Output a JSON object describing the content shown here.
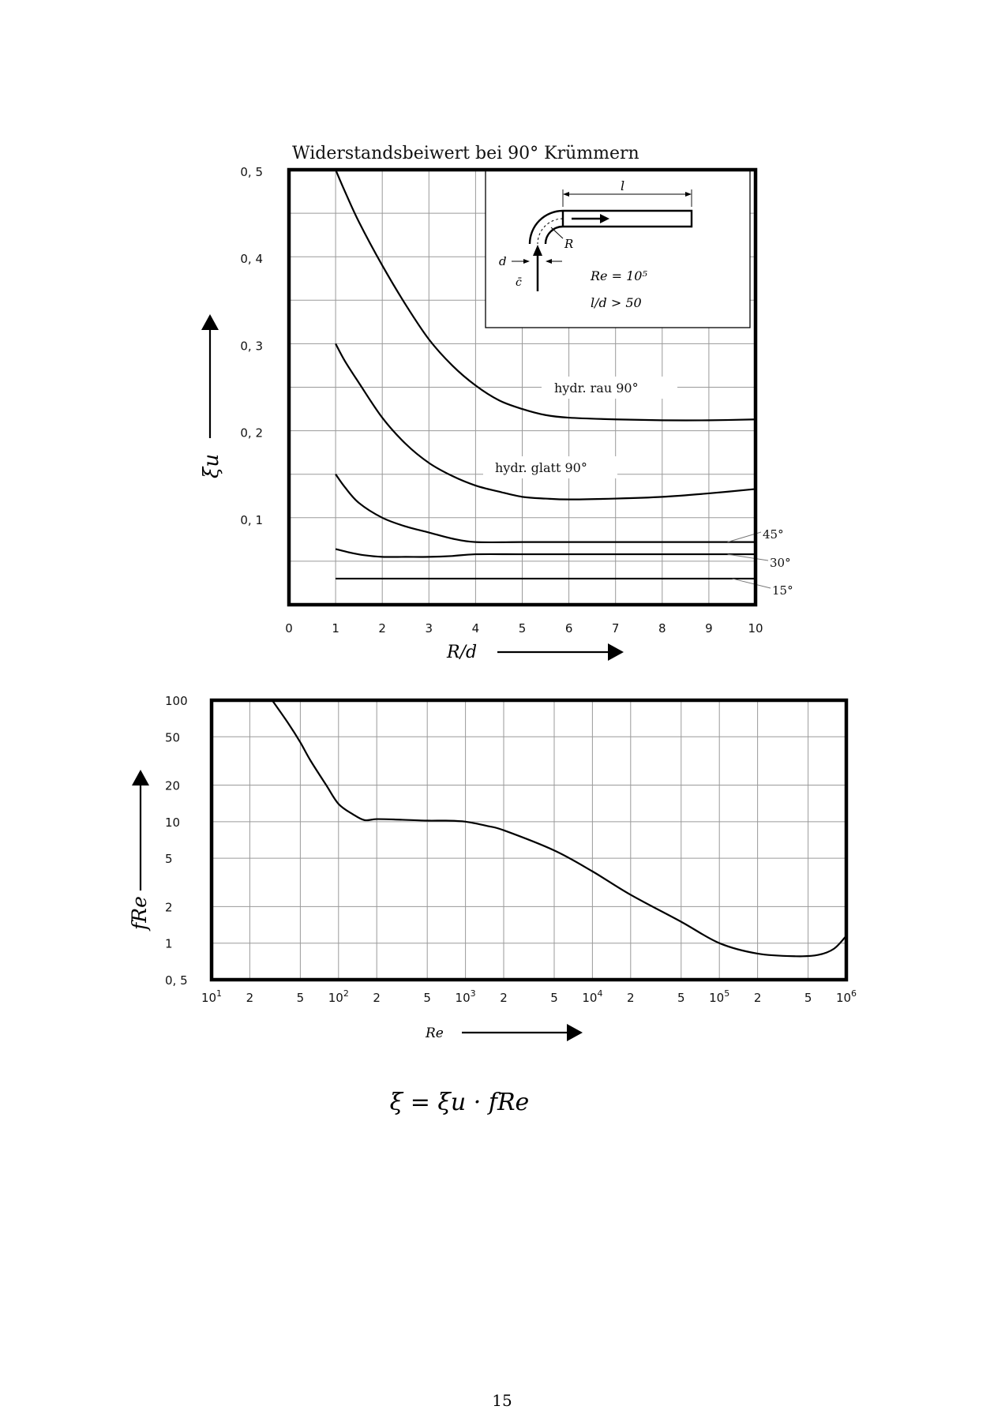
{
  "page": {
    "formula": "ξ = ξu · fRe",
    "page_number": "15"
  },
  "chart_data": [
    {
      "type": "line",
      "title": "Widerstandsbeiwert bei 90° Krümmern",
      "xlabel": "R/d",
      "ylabel": "ξu",
      "xlim": [
        0,
        10
      ],
      "ylim": [
        0,
        0.5
      ],
      "x_ticks": [
        "0",
        "1",
        "2",
        "3",
        "4",
        "5",
        "6",
        "7",
        "8",
        "9",
        "10"
      ],
      "y_ticks": [
        {
          "value": 0.1,
          "label": "0, 1"
        },
        {
          "value": 0.2,
          "label": "0, 2"
        },
        {
          "value": 0.3,
          "label": "0, 3"
        },
        {
          "value": 0.4,
          "label": "0, 4"
        },
        {
          "value": 0.5,
          "label": "0, 5"
        }
      ],
      "grid": true,
      "series": [
        {
          "name": "hydr. rau 90°",
          "x": [
            1,
            1.2,
            1.5,
            2,
            2.5,
            3,
            3.5,
            4,
            4.5,
            5,
            5.5,
            6,
            7,
            8,
            9,
            10
          ],
          "y": [
            0.5,
            0.475,
            0.44,
            0.39,
            0.345,
            0.305,
            0.275,
            0.252,
            0.235,
            0.225,
            0.218,
            0.215,
            0.213,
            0.212,
            0.212,
            0.213
          ]
        },
        {
          "name": "hydr. glatt 90°",
          "x": [
            1,
            1.2,
            1.5,
            2,
            2.5,
            3,
            3.5,
            4,
            4.5,
            5,
            5.5,
            6,
            7,
            8,
            9,
            10
          ],
          "y": [
            0.3,
            0.28,
            0.255,
            0.215,
            0.185,
            0.163,
            0.148,
            0.137,
            0.13,
            0.124,
            0.122,
            0.121,
            0.122,
            0.124,
            0.128,
            0.133
          ]
        },
        {
          "name": "45°",
          "x": [
            1,
            1.2,
            1.5,
            2,
            2.5,
            3,
            3.5,
            4,
            5,
            6,
            7,
            8,
            9,
            10
          ],
          "y": [
            0.15,
            0.135,
            0.117,
            0.1,
            0.09,
            0.083,
            0.076,
            0.072,
            0.072,
            0.072,
            0.072,
            0.072,
            0.072,
            0.072
          ]
        },
        {
          "name": "30°",
          "x": [
            1,
            1.3,
            1.6,
            2,
            2.5,
            3,
            3.5,
            4,
            5,
            6,
            7,
            8,
            9,
            10
          ],
          "y": [
            0.064,
            0.06,
            0.057,
            0.055,
            0.055,
            0.055,
            0.056,
            0.058,
            0.058,
            0.058,
            0.058,
            0.058,
            0.058,
            0.058
          ]
        },
        {
          "name": "15°",
          "x": [
            1,
            2,
            3,
            4,
            5,
            6,
            7,
            8,
            9,
            10
          ],
          "y": [
            0.03,
            0.03,
            0.03,
            0.03,
            0.03,
            0.03,
            0.03,
            0.03,
            0.03,
            0.03
          ]
        }
      ],
      "inset": {
        "l_label": "l",
        "r_label": "R",
        "d_label": "d",
        "c_label": "c̄",
        "re_text": "Re = 10⁵",
        "ld_text": "l/d > 50"
      }
    },
    {
      "type": "line",
      "xlabel": "Re",
      "ylabel": "fRe",
      "x_scale": "log",
      "y_scale": "log",
      "xlim": [
        10,
        1000000
      ],
      "ylim": [
        0.5,
        100
      ],
      "x_ticks": [
        {
          "value": 10,
          "base": "10",
          "exp": "1"
        },
        {
          "value": 20,
          "label": "2"
        },
        {
          "value": 50,
          "label": "5"
        },
        {
          "value": 100,
          "base": "10",
          "exp": "2"
        },
        {
          "value": 200,
          "label": "2"
        },
        {
          "value": 500,
          "label": "5"
        },
        {
          "value": 1000,
          "base": "10",
          "exp": "3"
        },
        {
          "value": 2000,
          "label": "2"
        },
        {
          "value": 5000,
          "label": "5"
        },
        {
          "value": 10000,
          "base": "10",
          "exp": "4"
        },
        {
          "value": 20000,
          "label": "2"
        },
        {
          "value": 50000,
          "label": "5"
        },
        {
          "value": 100000,
          "base": "10",
          "exp": "5"
        },
        {
          "value": 200000,
          "label": "2"
        },
        {
          "value": 500000,
          "label": "5"
        },
        {
          "value": 1000000,
          "base": "10",
          "exp": "6"
        }
      ],
      "y_ticks": [
        {
          "value": 0.5,
          "label": "0, 5"
        },
        {
          "value": 1,
          "label": "1"
        },
        {
          "value": 2,
          "label": "2"
        },
        {
          "value": 5,
          "label": "5"
        },
        {
          "value": 10,
          "label": "10"
        },
        {
          "value": 20,
          "label": "20"
        },
        {
          "value": 50,
          "label": "50"
        },
        {
          "value": 100,
          "label": "100"
        }
      ],
      "grid": true,
      "series": [
        {
          "x": [
            30,
            40,
            50,
            60,
            80,
            100,
            130,
            160,
            200,
            300,
            500,
            700,
            1000,
            1500,
            2000,
            5000,
            10000,
            20000,
            50000,
            100000,
            200000,
            400000,
            600000,
            800000,
            1000000
          ],
          "y": [
            100,
            65,
            45,
            32,
            20,
            14,
            11.5,
            10.3,
            10.5,
            10.4,
            10.2,
            10.2,
            10,
            9.2,
            8.5,
            5.8,
            3.9,
            2.5,
            1.5,
            1.0,
            0.82,
            0.78,
            0.8,
            0.9,
            1.15
          ]
        }
      ]
    }
  ]
}
